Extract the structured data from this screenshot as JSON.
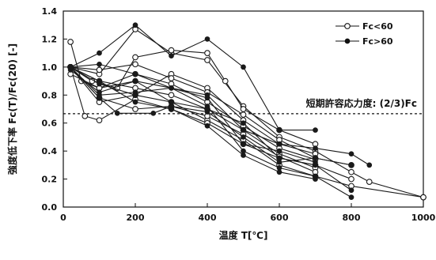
{
  "chart_data": {
    "type": "line",
    "xlabel": "温度 T[℃]",
    "ylabel": "強度低下率 Fc(T)/Fc(20) [-]",
    "xlim": [
      0,
      1000
    ],
    "ylim": [
      0,
      1.4
    ],
    "x_ticks": [
      "0",
      "200",
      "400",
      "600",
      "800",
      "1000"
    ],
    "y_ticks": [
      "0.0",
      "0.2",
      "0.4",
      "0.6",
      "0.8",
      "1.0",
      "1.2",
      "1.4"
    ],
    "grid": false,
    "legend_position": "top-right",
    "legend": [
      {
        "label": "Fc<60",
        "marker": "open-circle"
      },
      {
        "label": "Fc>60",
        "marker": "filled-circle"
      }
    ],
    "reference_line": {
      "y": 0.667,
      "style": "dashed",
      "label": "短期許容応力度: (2/3)Fc"
    },
    "series": [
      {
        "group": "Fc<60",
        "points": [
          [
            20,
            1.0
          ],
          [
            100,
            0.95
          ],
          [
            200,
            1.27
          ],
          [
            300,
            1.1
          ],
          [
            400,
            1.05
          ],
          [
            500,
            0.72
          ],
          [
            600,
            0.5
          ],
          [
            700,
            0.4
          ],
          [
            800,
            0.25
          ],
          [
            850,
            0.18
          ],
          [
            1000,
            0.07
          ]
        ]
      },
      {
        "group": "Fc<60",
        "points": [
          [
            20,
            1.18
          ],
          [
            50,
            0.9
          ],
          [
            100,
            0.85
          ],
          [
            200,
            0.9
          ],
          [
            300,
            0.75
          ],
          [
            400,
            0.62
          ],
          [
            500,
            0.48
          ],
          [
            600,
            0.3
          ],
          [
            700,
            0.22
          ],
          [
            800,
            0.15
          ],
          [
            1000,
            0.07
          ]
        ]
      },
      {
        "group": "Fc<60",
        "points": [
          [
            20,
            1.0
          ],
          [
            60,
            0.65
          ],
          [
            100,
            0.62
          ],
          [
            200,
            0.77
          ],
          [
            300,
            0.7
          ],
          [
            400,
            0.6
          ],
          [
            500,
            0.45
          ],
          [
            600,
            0.35
          ],
          [
            700,
            0.3
          ],
          [
            800,
            0.2
          ]
        ]
      },
      {
        "group": "Fc<60",
        "points": [
          [
            20,
            1.0
          ],
          [
            80,
            0.9
          ],
          [
            150,
            0.85
          ],
          [
            200,
            1.07
          ],
          [
            300,
            1.12
          ],
          [
            400,
            1.1
          ],
          [
            450,
            0.9
          ],
          [
            500,
            0.7
          ],
          [
            600,
            0.55
          ],
          [
            700,
            0.45
          ]
        ]
      },
      {
        "group": "Fc<60",
        "points": [
          [
            20,
            1.0
          ],
          [
            100,
            0.75
          ],
          [
            200,
            0.8
          ],
          [
            300,
            0.95
          ],
          [
            400,
            0.85
          ],
          [
            500,
            0.62
          ],
          [
            600,
            0.45
          ],
          [
            700,
            0.38
          ]
        ]
      },
      {
        "group": "Fc<60",
        "points": [
          [
            20,
            1.0
          ],
          [
            100,
            0.98
          ],
          [
            200,
            1.02
          ],
          [
            300,
            0.92
          ],
          [
            400,
            0.82
          ],
          [
            500,
            0.66
          ],
          [
            600,
            0.48
          ],
          [
            700,
            0.35
          ],
          [
            800,
            0.3
          ]
        ]
      },
      {
        "group": "Fc<60",
        "points": [
          [
            20,
            0.95
          ],
          [
            100,
            0.85
          ],
          [
            200,
            0.95
          ],
          [
            300,
            0.88
          ],
          [
            400,
            0.75
          ],
          [
            500,
            0.58
          ],
          [
            600,
            0.42
          ],
          [
            700,
            0.34
          ]
        ]
      },
      {
        "group": "Fc<60",
        "points": [
          [
            20,
            1.0
          ],
          [
            100,
            0.9
          ],
          [
            200,
            0.85
          ],
          [
            300,
            0.8
          ],
          [
            400,
            0.7
          ],
          [
            500,
            0.55
          ],
          [
            600,
            0.38
          ],
          [
            700,
            0.28
          ]
        ]
      },
      {
        "group": "Fc<60",
        "points": [
          [
            20,
            1.0
          ],
          [
            100,
            0.78
          ],
          [
            200,
            0.7
          ],
          [
            300,
            0.72
          ],
          [
            400,
            0.65
          ],
          [
            500,
            0.52
          ],
          [
            600,
            0.36
          ],
          [
            700,
            0.25
          ]
        ]
      },
      {
        "group": "Fc>60",
        "points": [
          [
            20,
            1.0
          ],
          [
            100,
            1.1
          ],
          [
            200,
            1.3
          ],
          [
            300,
            1.08
          ],
          [
            400,
            1.2
          ],
          [
            500,
            1.0
          ],
          [
            600,
            0.55
          ],
          [
            700,
            0.55
          ]
        ]
      },
      {
        "group": "Fc>60",
        "points": [
          [
            20,
            1.0
          ],
          [
            100,
            0.78
          ],
          [
            150,
            0.67
          ],
          [
            250,
            0.67
          ],
          [
            300,
            0.72
          ],
          [
            400,
            0.68
          ],
          [
            500,
            0.5
          ],
          [
            600,
            0.32
          ],
          [
            700,
            0.35
          ],
          [
            800,
            0.3
          ]
        ]
      },
      {
        "group": "Fc>60",
        "points": [
          [
            20,
            0.98
          ],
          [
            100,
            0.82
          ],
          [
            200,
            0.9
          ],
          [
            300,
            0.85
          ],
          [
            400,
            0.72
          ],
          [
            500,
            0.4
          ],
          [
            600,
            0.28
          ],
          [
            700,
            0.22
          ],
          [
            800,
            0.07
          ]
        ]
      },
      {
        "group": "Fc>60",
        "points": [
          [
            20,
            1.0
          ],
          [
            100,
            0.8
          ],
          [
            200,
            0.82
          ],
          [
            300,
            0.85
          ],
          [
            400,
            0.8
          ],
          [
            500,
            0.55
          ],
          [
            600,
            0.45
          ],
          [
            700,
            0.42
          ],
          [
            800,
            0.38
          ],
          [
            850,
            0.3
          ]
        ]
      },
      {
        "group": "Fc>60",
        "points": [
          [
            20,
            1.0
          ],
          [
            100,
            0.9
          ],
          [
            200,
            0.75
          ],
          [
            300,
            0.7
          ],
          [
            400,
            0.58
          ],
          [
            500,
            0.37
          ],
          [
            600,
            0.25
          ],
          [
            700,
            0.2
          ]
        ]
      },
      {
        "group": "Fc>60",
        "points": [
          [
            20,
            1.0
          ],
          [
            100,
            1.02
          ],
          [
            200,
            0.95
          ],
          [
            300,
            0.85
          ],
          [
            400,
            0.78
          ],
          [
            500,
            0.45
          ],
          [
            600,
            0.4
          ],
          [
            700,
            0.32
          ]
        ]
      },
      {
        "group": "Fc>60",
        "points": [
          [
            20,
            1.0
          ],
          [
            100,
            0.88
          ],
          [
            200,
            0.8
          ],
          [
            300,
            0.75
          ],
          [
            400,
            0.7
          ],
          [
            500,
            0.6
          ],
          [
            600,
            0.35
          ],
          [
            700,
            0.3
          ],
          [
            800,
            0.12
          ]
        ]
      }
    ]
  }
}
